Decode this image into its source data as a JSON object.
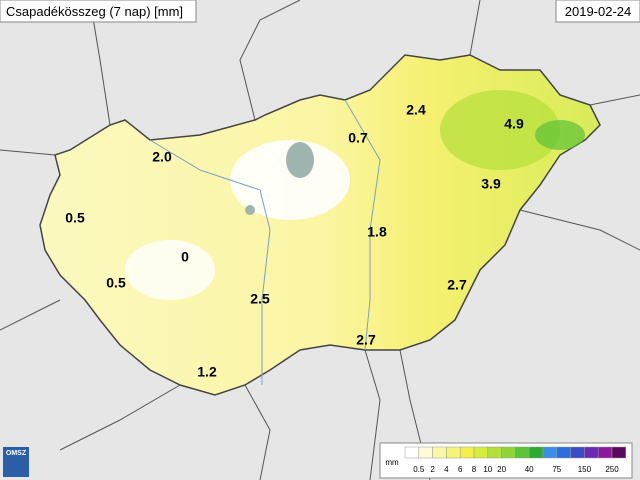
{
  "header": {
    "title": "Csapadékösszeg (7 nap) [mm]",
    "date": "2019-02-24"
  },
  "stations": [
    "2.0",
    "0.5",
    "0",
    "0.5",
    "2.5",
    "1.2",
    "0.7",
    "2.4",
    "4.9",
    "3.9",
    "1.8",
    "2.7",
    "2.7"
  ],
  "legend": {
    "unit": "mm",
    "colors": [
      "#ffffff",
      "#fdfbd8",
      "#fbf7a8",
      "#f7f278",
      "#f3ee4a",
      "#d8ec3c",
      "#b4e03a",
      "#8ed43a",
      "#5cc238",
      "#2ea82e",
      "#3a8ee8",
      "#2c6ede",
      "#3b4cc8",
      "#6a2ab4",
      "#8a1a9a",
      "#5a0a5a"
    ],
    "ticks": [
      "0.5",
      "2",
      "4",
      "6",
      "8",
      "10",
      "20",
      "40",
      "75",
      "150",
      "250"
    ]
  },
  "logo": "OMSZ"
}
